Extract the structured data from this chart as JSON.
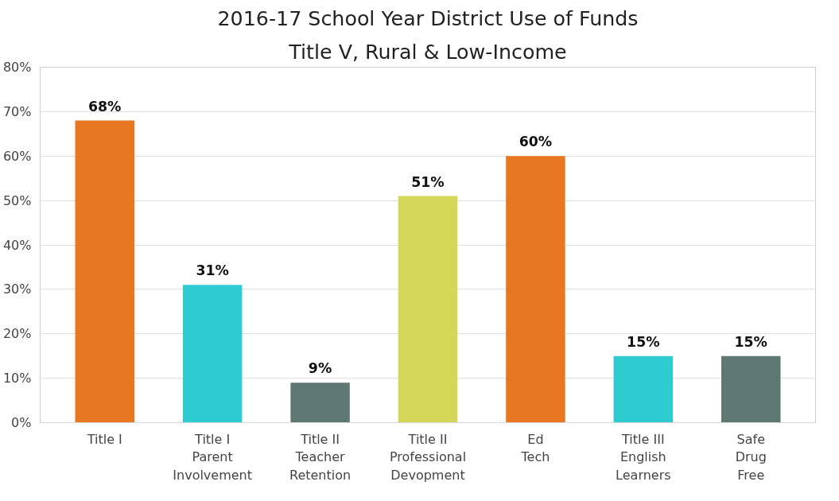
{
  "chart_data": {
    "type": "bar",
    "title": "2016-17 School Year District Use of Funds",
    "subtitle": "Title V, Rural & Low-Income",
    "categories": [
      "Title I",
      "Title I\nParent\nInvolvement",
      "Title II\nTeacher\nRetention",
      "Title II\nProfessional\nDevopment",
      "Ed\nTech",
      "Title III\nEnglish\nLearners",
      "Safe\nDrug\nFree"
    ],
    "values": [
      68,
      31,
      9,
      51,
      60,
      15,
      15
    ],
    "colors": [
      "#e87722",
      "#2ecbd1",
      "#5d7872",
      "#d3d657",
      "#e87722",
      "#2ecbd1",
      "#5d7872"
    ],
    "value_labels": [
      "68%",
      "31%",
      "9%",
      "51%",
      "60%",
      "15%",
      "15%"
    ],
    "ylim": [
      0,
      80
    ],
    "yticks": [
      {
        "value": 0,
        "label": "0%"
      },
      {
        "value": 10,
        "label": "10%"
      },
      {
        "value": 20,
        "label": "20%"
      },
      {
        "value": 30,
        "label": "30%"
      },
      {
        "value": 40,
        "label": "40%"
      },
      {
        "value": 50,
        "label": "50%"
      },
      {
        "value": 60,
        "label": "60%"
      },
      {
        "value": 70,
        "label": "70%"
      },
      {
        "value": 80,
        "label": "80%"
      }
    ],
    "grid": "y"
  }
}
